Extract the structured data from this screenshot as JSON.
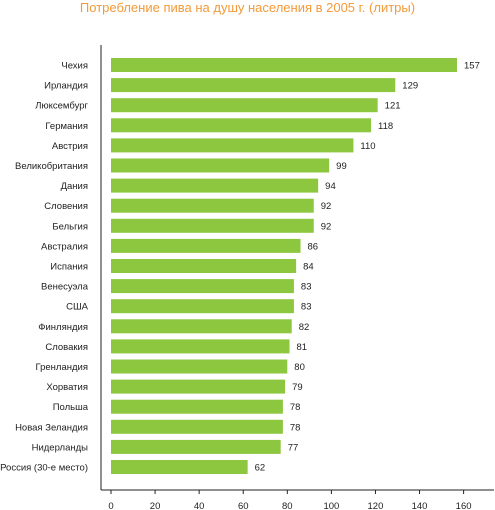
{
  "chart_data": {
    "type": "bar",
    "orientation": "horizontal",
    "title": "Потребление пива на душу населения в 2005 г. (литры)",
    "xlabel": "",
    "ylabel": "",
    "categories": [
      "Чехия",
      "Ирландия",
      "Люксембург",
      "Германия",
      "Австрия",
      "Великобритания",
      "Дания",
      "Словения",
      "Бельгия",
      "Австралия",
      "Испания",
      "Венесуэла",
      "США",
      "Финляндия",
      "Словакия",
      "Гренландия",
      "Хорватия",
      "Польша",
      "Новая Зеландия",
      "Нидерланды",
      "Россия (30-е место)"
    ],
    "values": [
      157,
      129,
      121,
      118,
      110,
      99,
      94,
      92,
      92,
      86,
      84,
      83,
      83,
      82,
      81,
      80,
      79,
      78,
      78,
      77,
      62
    ],
    "value_labels": [
      "157",
      "129",
      "121",
      "118",
      "110",
      "99",
      "94",
      "92",
      "92",
      "86",
      "84",
      "83",
      "83",
      "82",
      "81",
      "80",
      "79",
      "78",
      "78",
      "77",
      "62"
    ],
    "xlim": [
      0,
      180
    ],
    "x_ticks": [
      0,
      20,
      40,
      60,
      80,
      100,
      120,
      140,
      160
    ],
    "x_tick_labels": [
      "0",
      "20",
      "40",
      "60",
      "80",
      "100",
      "120",
      "140",
      "160"
    ],
    "grid": false,
    "legend": "none",
    "colors": {
      "bar": "#8dc63f",
      "title": "#f39a3a",
      "axis": "#222222"
    }
  }
}
